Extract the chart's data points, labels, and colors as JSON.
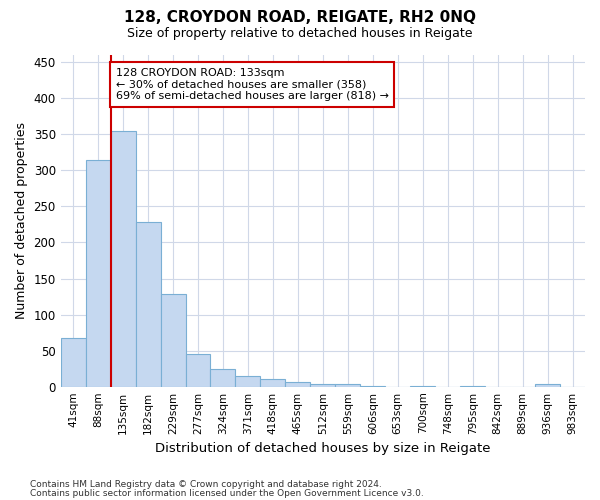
{
  "title": "128, CROYDON ROAD, REIGATE, RH2 0NQ",
  "subtitle": "Size of property relative to detached houses in Reigate",
  "xlabel": "Distribution of detached houses by size in Reigate",
  "ylabel": "Number of detached properties",
  "bin_labels": [
    "41sqm",
    "88sqm",
    "135sqm",
    "182sqm",
    "229sqm",
    "277sqm",
    "324sqm",
    "371sqm",
    "418sqm",
    "465sqm",
    "512sqm",
    "559sqm",
    "606sqm",
    "653sqm",
    "700sqm",
    "748sqm",
    "795sqm",
    "842sqm",
    "889sqm",
    "936sqm",
    "983sqm"
  ],
  "bar_values": [
    67,
    315,
    354,
    228,
    128,
    46,
    24,
    15,
    10,
    6,
    4,
    4,
    1,
    0,
    1,
    0,
    1,
    0,
    0,
    4,
    0
  ],
  "bar_color": "#c5d8f0",
  "bar_edge_color": "#7aafd4",
  "annotation_text": "128 CROYDON ROAD: 133sqm\n← 30% of detached houses are smaller (358)\n69% of semi-detached houses are larger (818) →",
  "annotation_box_color": "#ffffff",
  "annotation_box_edge_color": "#cc0000",
  "vline_color": "#cc0000",
  "ylim": [
    0,
    460
  ],
  "yticks": [
    0,
    50,
    100,
    150,
    200,
    250,
    300,
    350,
    400,
    450
  ],
  "footnote1": "Contains HM Land Registry data © Crown copyright and database right 2024.",
  "footnote2": "Contains public sector information licensed under the Open Government Licence v3.0.",
  "bg_color": "#ffffff",
  "plot_bg_color": "#ffffff",
  "grid_color": "#d0d8e8"
}
